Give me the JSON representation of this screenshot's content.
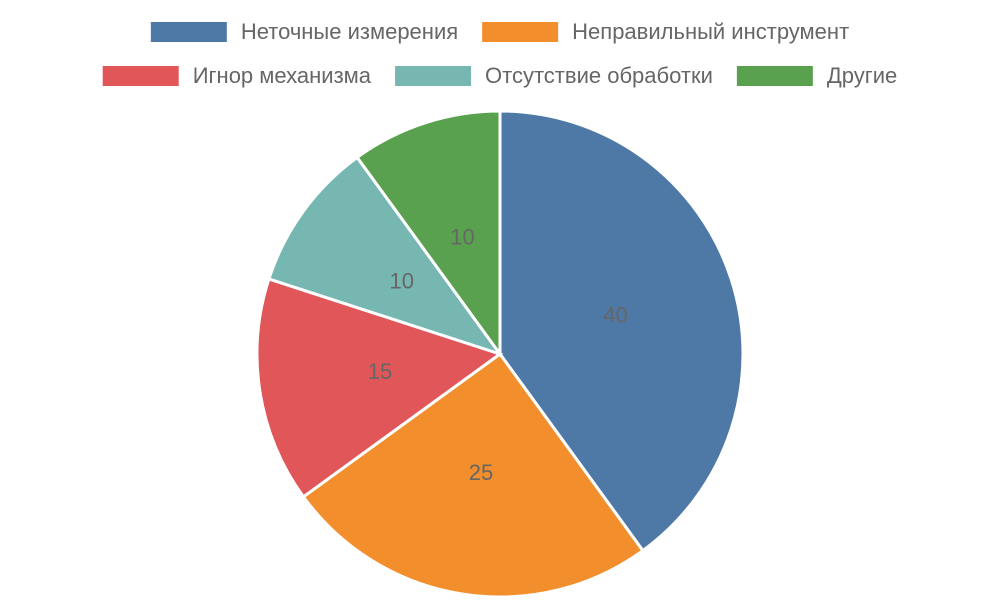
{
  "chart_data": {
    "type": "pie",
    "categories": [
      "Неточные измерения",
      "Неправильный инструмент",
      "Игнор механизма",
      "Отсутствие обработки",
      "Другие"
    ],
    "values": [
      40,
      25,
      15,
      10,
      10
    ],
    "colors": [
      "#4e79a7",
      "#f28e2b",
      "#e15759",
      "#76b7b2",
      "#59a14f"
    ],
    "legend": "top"
  }
}
